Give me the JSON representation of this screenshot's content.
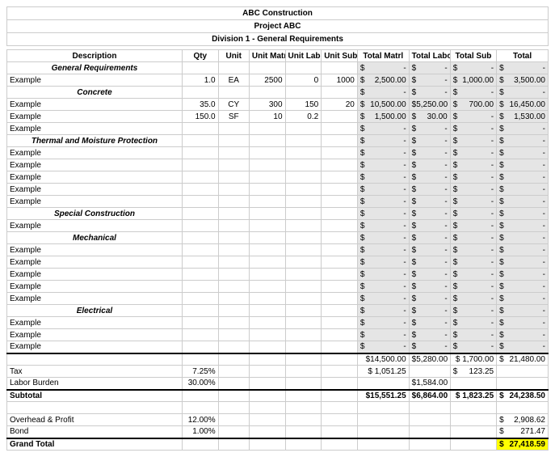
{
  "header": {
    "company": "ABC Construction",
    "project": "Project ABC",
    "division": "Division 1 - General Requirements"
  },
  "columns": {
    "description": "Description",
    "qty": "Qty",
    "unit": "Unit",
    "unit_matrl": "Unit Matrl",
    "unit_labor": "Unit Labor",
    "unit_sub": "Unit Sub",
    "total_matrl": "Total Matrl",
    "total_labor": "Total Labor",
    "total_sub": "Total Sub",
    "total": "Total"
  },
  "sections": [
    {
      "label": "General Requirements",
      "head_totals": {
        "tm": "-",
        "tl": "-",
        "ts": "-",
        "t": "-"
      },
      "rows": [
        {
          "desc": "Example",
          "qty": "1.0",
          "unit": "EA",
          "um": "2500",
          "ul": "0",
          "us": "1000",
          "tm": "2,500.00",
          "tl": "-",
          "ts": "1,000.00",
          "t": "3,500.00"
        }
      ]
    },
    {
      "label": "Concrete",
      "head_totals": {
        "tm": "-",
        "tl": "-",
        "ts": "-",
        "t": "-"
      },
      "rows": [
        {
          "desc": "Example",
          "qty": "35.0",
          "unit": "CY",
          "um": "300",
          "ul": "150",
          "us": "20",
          "tm": "10,500.00",
          "tl": "5,250.00",
          "ts": "700.00",
          "t": "16,450.00"
        },
        {
          "desc": "Example",
          "qty": "150.0",
          "unit": "SF",
          "um": "10",
          "ul": "0.2",
          "us": "",
          "tm": "1,500.00",
          "tl": "30.00",
          "ts": "-",
          "t": "1,530.00"
        },
        {
          "desc": "Example",
          "qty": "",
          "unit": "",
          "um": "",
          "ul": "",
          "us": "",
          "tm": "-",
          "tl": "-",
          "ts": "-",
          "t": "-"
        }
      ]
    },
    {
      "label": "Thermal and Moisture Protection",
      "head_totals": {
        "tm": "-",
        "tl": "-",
        "ts": "-",
        "t": "-"
      },
      "rows": [
        {
          "desc": "Example",
          "qty": "",
          "unit": "",
          "um": "",
          "ul": "",
          "us": "",
          "tm": "-",
          "tl": "-",
          "ts": "-",
          "t": "-"
        },
        {
          "desc": "Example",
          "qty": "",
          "unit": "",
          "um": "",
          "ul": "",
          "us": "",
          "tm": "-",
          "tl": "-",
          "ts": "-",
          "t": "-"
        },
        {
          "desc": "Example",
          "qty": "",
          "unit": "",
          "um": "",
          "ul": "",
          "us": "",
          "tm": "-",
          "tl": "-",
          "ts": "-",
          "t": "-"
        },
        {
          "desc": "Example",
          "qty": "",
          "unit": "",
          "um": "",
          "ul": "",
          "us": "",
          "tm": "-",
          "tl": "-",
          "ts": "-",
          "t": "-"
        },
        {
          "desc": "Example",
          "qty": "",
          "unit": "",
          "um": "",
          "ul": "",
          "us": "",
          "tm": "-",
          "tl": "-",
          "ts": "-",
          "t": "-"
        }
      ]
    },
    {
      "label": "Special Construction",
      "head_totals": {
        "tm": "-",
        "tl": "-",
        "ts": "-",
        "t": "-"
      },
      "rows": [
        {
          "desc": "Example",
          "qty": "",
          "unit": "",
          "um": "",
          "ul": "",
          "us": "",
          "tm": "-",
          "tl": "-",
          "ts": "-",
          "t": "-"
        }
      ]
    },
    {
      "label": "Mechanical",
      "head_totals": {
        "tm": "-",
        "tl": "-",
        "ts": "-",
        "t": "-"
      },
      "rows": [
        {
          "desc": "Example",
          "qty": "",
          "unit": "",
          "um": "",
          "ul": "",
          "us": "",
          "tm": "-",
          "tl": "-",
          "ts": "-",
          "t": "-"
        },
        {
          "desc": "Example",
          "qty": "",
          "unit": "",
          "um": "",
          "ul": "",
          "us": "",
          "tm": "-",
          "tl": "-",
          "ts": "-",
          "t": "-"
        },
        {
          "desc": "Example",
          "qty": "",
          "unit": "",
          "um": "",
          "ul": "",
          "us": "",
          "tm": "-",
          "tl": "-",
          "ts": "-",
          "t": "-"
        },
        {
          "desc": "Example",
          "qty": "",
          "unit": "",
          "um": "",
          "ul": "",
          "us": "",
          "tm": "-",
          "tl": "-",
          "ts": "-",
          "t": "-"
        },
        {
          "desc": "Example",
          "qty": "",
          "unit": "",
          "um": "",
          "ul": "",
          "us": "",
          "tm": "-",
          "tl": "-",
          "ts": "-",
          "t": "-"
        }
      ]
    },
    {
      "label": "Electrical",
      "head_totals": {
        "tm": "-",
        "tl": "-",
        "ts": "-",
        "t": "-"
      },
      "rows": [
        {
          "desc": "Example",
          "qty": "",
          "unit": "",
          "um": "",
          "ul": "",
          "us": "",
          "tm": "-",
          "tl": "-",
          "ts": "-",
          "t": "-"
        },
        {
          "desc": "Example",
          "qty": "",
          "unit": "",
          "um": "",
          "ul": "",
          "us": "",
          "tm": "-",
          "tl": "-",
          "ts": "-",
          "t": "-"
        },
        {
          "desc": "Example",
          "qty": "",
          "unit": "",
          "um": "",
          "ul": "",
          "us": "",
          "tm": "-",
          "tl": "-",
          "ts": "-",
          "t": "-"
        }
      ]
    }
  ],
  "totals_row": {
    "tm": "$14,500.00",
    "tl": "$5,280.00",
    "ts": "$ 1,700.00",
    "t": "21,480.00"
  },
  "tax": {
    "label": "Tax",
    "rate": "7.25%",
    "value": "$ 1,051.25",
    "ts": "123.25"
  },
  "labor_burden": {
    "label": "Labor Burden",
    "rate": "30.00%",
    "value": "$1,584.00"
  },
  "subtotal": {
    "label": "Subtotal",
    "tm": "$15,551.25",
    "tl": "$6,864.00",
    "ts": "$ 1,823.25",
    "t": "24,238.50"
  },
  "overhead": {
    "label": "Overhead & Profit",
    "rate": "12.00%",
    "t": "2,908.62"
  },
  "bond": {
    "label": "Bond",
    "rate": "1.00%",
    "t": "271.47"
  },
  "grand_total": {
    "label": "Grand Total",
    "t": "27,418.59"
  },
  "currency": "$"
}
